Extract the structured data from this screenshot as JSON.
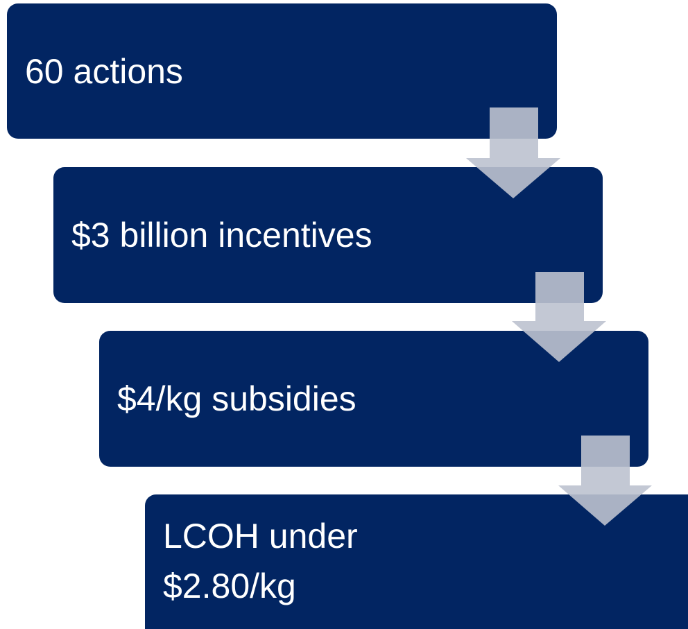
{
  "nodes": [
    {
      "lines": [
        "60 actions"
      ]
    },
    {
      "lines": [
        "$3 billion incentives"
      ]
    },
    {
      "lines": [
        "$4/kg subsidies"
      ]
    },
    {
      "lines": [
        "LCOH under",
        "$2.80/kg"
      ]
    }
  ]
}
